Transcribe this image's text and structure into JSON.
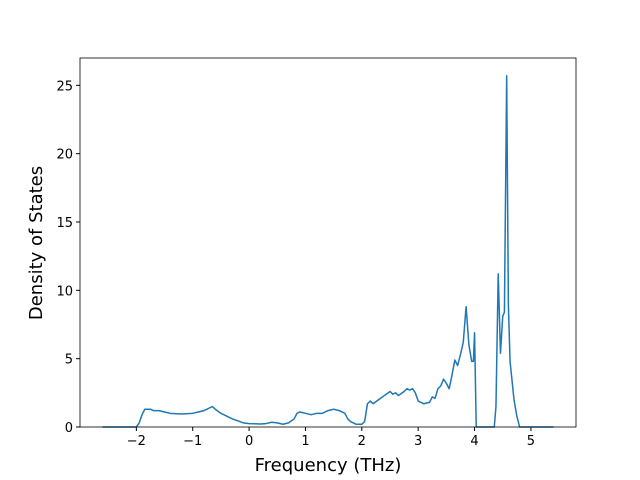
{
  "chart_data": {
    "type": "line",
    "xlabel": "Frequency (THz)",
    "ylabel": "Density of States",
    "x": [
      -2.6,
      -2.5,
      -2.3,
      -2.1,
      -2.0,
      -1.95,
      -1.9,
      -1.85,
      -1.75,
      -1.7,
      -1.6,
      -1.5,
      -1.4,
      -1.2,
      -1.0,
      -0.9,
      -0.8,
      -0.7,
      -0.65,
      -0.6,
      -0.5,
      -0.4,
      -0.3,
      -0.2,
      -0.1,
      0.0,
      0.2,
      0.3,
      0.4,
      0.5,
      0.6,
      0.7,
      0.8,
      0.85,
      0.9,
      1.0,
      1.1,
      1.2,
      1.3,
      1.4,
      1.5,
      1.6,
      1.7,
      1.75,
      1.8,
      1.9,
      2.0,
      2.05,
      2.1,
      2.15,
      2.2,
      2.3,
      2.4,
      2.5,
      2.55,
      2.6,
      2.65,
      2.75,
      2.8,
      2.85,
      2.9,
      2.95,
      3.0,
      3.1,
      3.2,
      3.25,
      3.3,
      3.35,
      3.4,
      3.45,
      3.5,
      3.55,
      3.6,
      3.65,
      3.7,
      3.75,
      3.8,
      3.85,
      3.9,
      3.95,
      3.98,
      4.0,
      4.03,
      4.1,
      4.3,
      4.35,
      4.38,
      4.42,
      4.46,
      4.5,
      4.53,
      4.57,
      4.6,
      4.63,
      4.7,
      4.75,
      4.8,
      5.0,
      5.2,
      5.4
    ],
    "series": [
      {
        "color": "#1f77b4",
        "values": [
          0,
          0,
          0,
          0,
          0,
          0.3,
          0.9,
          1.3,
          1.3,
          1.2,
          1.2,
          1.1,
          1.0,
          0.95,
          1.0,
          1.1,
          1.2,
          1.4,
          1.5,
          1.3,
          1.0,
          0.8,
          0.6,
          0.45,
          0.3,
          0.25,
          0.22,
          0.25,
          0.35,
          0.3,
          0.2,
          0.3,
          0.6,
          1.0,
          1.1,
          1.0,
          0.9,
          1.0,
          1.0,
          1.2,
          1.3,
          1.2,
          1.0,
          0.6,
          0.4,
          0.2,
          0.2,
          0.4,
          1.7,
          1.9,
          1.7,
          2.0,
          2.3,
          2.6,
          2.4,
          2.5,
          2.3,
          2.6,
          2.8,
          2.7,
          2.8,
          2.5,
          1.9,
          1.7,
          1.8,
          2.2,
          2.1,
          2.8,
          3.0,
          3.5,
          3.2,
          2.8,
          3.8,
          4.9,
          4.5,
          5.3,
          6.2,
          8.8,
          6.0,
          4.8,
          4.8,
          6.9,
          0,
          0,
          0,
          0,
          1.5,
          11.2,
          5.4,
          8.1,
          8.4,
          25.7,
          9.0,
          4.8,
          2.0,
          0.8,
          0,
          0,
          0,
          0
        ]
      }
    ],
    "xlim": [
      -3.0,
      5.8
    ],
    "ylim": [
      0,
      27
    ],
    "xticks": [
      {
        "value": -2,
        "label": "−2"
      },
      {
        "value": -1,
        "label": "−1"
      },
      0,
      1,
      2,
      3,
      4,
      5
    ],
    "yticks": [
      0,
      5,
      10,
      15,
      20,
      25
    ]
  }
}
